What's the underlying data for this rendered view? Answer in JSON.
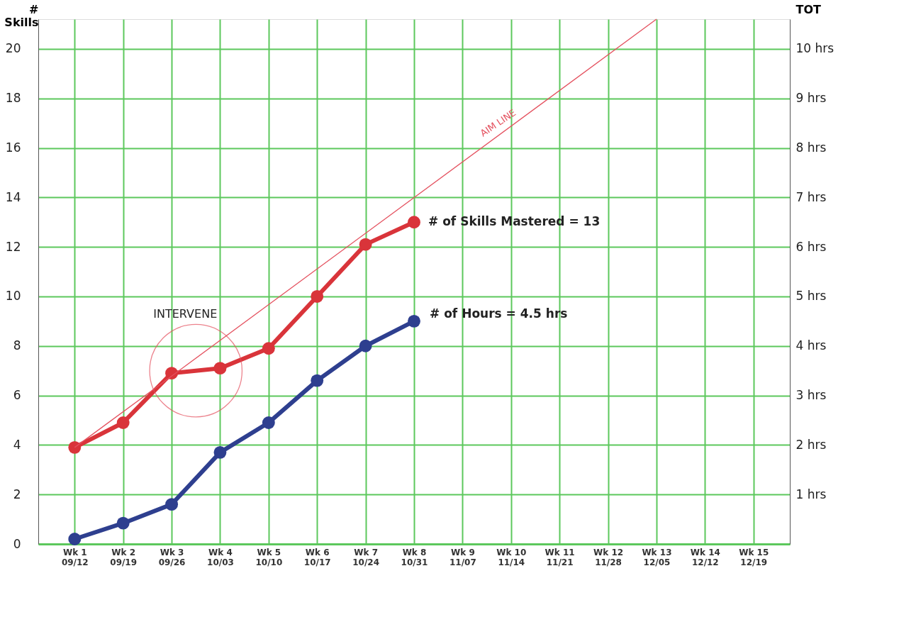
{
  "chart_data": {
    "type": "line",
    "categories": [
      "Wk 1\n09/12",
      "Wk 2\n09/19",
      "Wk 3\n09/26",
      "Wk 4\n10/03",
      "Wk 5\n10/10",
      "Wk 6\n10/17",
      "Wk 7\n10/24",
      "Wk 8\n10/31",
      "Wk 9\n11/07",
      "Wk 10\n11/14",
      "Wk 11\n11/21",
      "Wk 12\n11/28",
      "Wk 13\n12/05",
      "Wk 14\n12/12",
      "Wk 15\n12/19"
    ],
    "series": [
      {
        "color": "#2e3f8f",
        "axis": "y2",
        "values": [
          0.1,
          0.42,
          0.8,
          1.85,
          2.45,
          3.3,
          4.0,
          4.5,
          null,
          null,
          null,
          null,
          null,
          null,
          null
        ]
      },
      {
        "color": "#d9343a",
        "values": [
          3.9,
          4.9,
          6.9,
          7.1,
          7.9,
          10.0,
          12.1,
          13.0,
          null,
          null,
          null,
          null,
          null,
          null,
          null
        ]
      },
      {
        "type": "line",
        "color": "#e4505e",
        "marker": "none",
        "x": [
          "Wk 1\n09/12",
          "Wk 13\n12/05"
        ],
        "values": [
          3.9,
          21.2
        ]
      }
    ],
    "ylabel": "#\nSkills",
    "y2label": "TOT",
    "ylim": [
      0,
      21.2
    ],
    "yticks": [
      0,
      2,
      4,
      6,
      8,
      10,
      12,
      14,
      16,
      18,
      20
    ],
    "y2lim": [
      0,
      10.6
    ],
    "y2ticks": [
      {
        "value": 1,
        "label": "1 hrs"
      },
      {
        "value": 2,
        "label": "2 hrs"
      },
      {
        "value": 3,
        "label": "3 hrs"
      },
      {
        "value": 4,
        "label": "4 hrs"
      },
      {
        "value": 5,
        "label": "5 hrs"
      },
      {
        "value": 6,
        "label": "6 hrs"
      },
      {
        "value": 7,
        "label": "7 hrs"
      },
      {
        "value": 8,
        "label": "8 hrs"
      },
      {
        "value": 9,
        "label": "9 hrs"
      },
      {
        "value": 10,
        "label": "10 hrs"
      }
    ],
    "annotations": [
      {
        "text": "# of Skills Mastered = 13",
        "x": "Wk 8\n10/31",
        "y": 13.0
      },
      {
        "text": "# of Hours = 4.5 hrs",
        "x": "Wk 8\n10/31",
        "y": 9.0
      },
      {
        "text": "AIM LINE",
        "x": "Wk 10\n11/14",
        "y": 17.0
      },
      "INTERVENE"
    ],
    "grid": true,
    "marker": "circle",
    "line_style": "solid"
  }
}
